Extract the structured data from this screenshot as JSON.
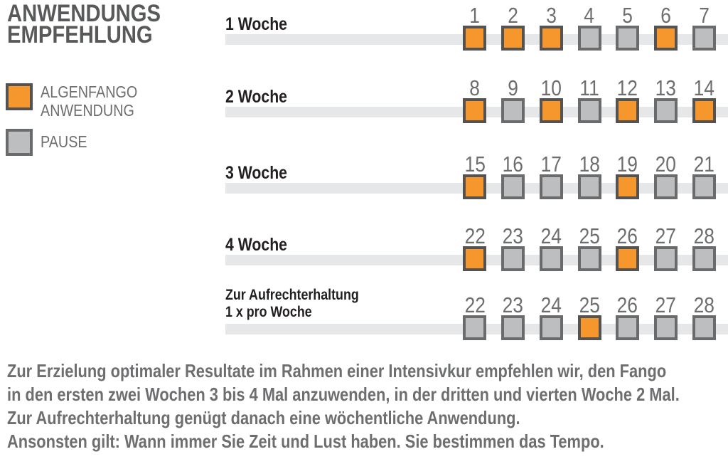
{
  "title": {
    "line1": "ANWENDUNGS",
    "line2": "EMPFEHLUNG"
  },
  "legend": {
    "anwendung": {
      "line1": "ALGENFANGO",
      "line2": "ANWENDUNG"
    },
    "pause": {
      "label": "PAUSE"
    }
  },
  "colors": {
    "anwendung_fill": "#F5972D",
    "anwendung_border": "#555352",
    "pause_fill": "#BCBEC0",
    "pause_border": "#6A6B6D",
    "track": "#E6E7E8",
    "title_text": "#58595B",
    "muted_text": "#6D6E70",
    "row_label_text": "#231F20"
  },
  "schedule": {
    "rows": [
      {
        "label_line1": "1 Woche",
        "label_line2": "",
        "days": [
          {
            "num": "1",
            "state": "anwendung"
          },
          {
            "num": "2",
            "state": "anwendung"
          },
          {
            "num": "3",
            "state": "anwendung"
          },
          {
            "num": "4",
            "state": "pause"
          },
          {
            "num": "5",
            "state": "pause"
          },
          {
            "num": "6",
            "state": "anwendung"
          },
          {
            "num": "7",
            "state": "pause"
          }
        ]
      },
      {
        "label_line1": "2 Woche",
        "label_line2": "",
        "days": [
          {
            "num": "8",
            "state": "anwendung"
          },
          {
            "num": "9",
            "state": "pause"
          },
          {
            "num": "10",
            "state": "anwendung"
          },
          {
            "num": "11",
            "state": "pause"
          },
          {
            "num": "12",
            "state": "anwendung"
          },
          {
            "num": "13",
            "state": "pause"
          },
          {
            "num": "14",
            "state": "anwendung"
          }
        ]
      },
      {
        "label_line1": "3 Woche",
        "label_line2": "",
        "days": [
          {
            "num": "15",
            "state": "anwendung"
          },
          {
            "num": "16",
            "state": "pause"
          },
          {
            "num": "17",
            "state": "pause"
          },
          {
            "num": "18",
            "state": "pause"
          },
          {
            "num": "19",
            "state": "anwendung"
          },
          {
            "num": "20",
            "state": "pause"
          },
          {
            "num": "21",
            "state": "pause"
          }
        ]
      },
      {
        "label_line1": "4 Woche",
        "label_line2": "",
        "days": [
          {
            "num": "22",
            "state": "anwendung"
          },
          {
            "num": "23",
            "state": "pause"
          },
          {
            "num": "24",
            "state": "pause"
          },
          {
            "num": "25",
            "state": "pause"
          },
          {
            "num": "26",
            "state": "anwendung"
          },
          {
            "num": "27",
            "state": "pause"
          },
          {
            "num": "28",
            "state": "pause"
          }
        ]
      },
      {
        "label_line1": "Zur Aufrechterhaltung",
        "label_line2": "1 x pro Woche",
        "days": [
          {
            "num": "22",
            "state": "pause"
          },
          {
            "num": "23",
            "state": "pause"
          },
          {
            "num": "24",
            "state": "pause"
          },
          {
            "num": "25",
            "state": "anwendung"
          },
          {
            "num": "26",
            "state": "pause"
          },
          {
            "num": "27",
            "state": "pause"
          },
          {
            "num": "28",
            "state": "pause"
          }
        ]
      }
    ]
  },
  "footer": {
    "lines": [
      "Zur Erzielung optimaler Resultate im Rahmen einer Intensivkur empfehlen wir, den Fango",
      "in den ersten zwei Wochen 3 bis 4 Mal anzuwenden, in der dritten und vierten Woche 2 Mal.",
      "Zur Aufrechterhaltung genügt danach eine wöchentliche Anwendung.",
      "Ansonsten gilt: Wann immer Sie Zeit und Lust haben. Sie bestimmen das Tempo."
    ]
  }
}
